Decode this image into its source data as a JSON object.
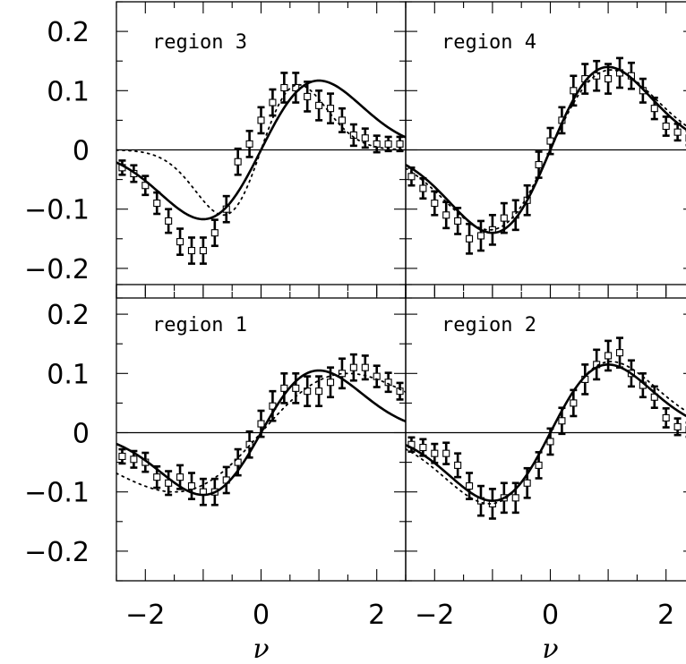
{
  "chart_data": [
    {
      "type": "scatter",
      "title": "region 3",
      "xlim": [
        -2.5,
        2.5
      ],
      "ylim": [
        -0.25,
        0.25
      ],
      "grid": false,
      "series": [
        {
          "kind": "points-with-errors",
          "x": [
            -2.4,
            -2.2,
            -2.0,
            -1.8,
            -1.6,
            -1.4,
            -1.2,
            -1.0,
            -0.8,
            -0.6,
            -0.4,
            -0.2,
            0.0,
            0.2,
            0.4,
            0.6,
            0.8,
            1.0,
            1.2,
            1.4,
            1.6,
            1.8,
            2.0,
            2.2,
            2.4
          ],
          "y": [
            -0.03,
            -0.04,
            -0.06,
            -0.09,
            -0.12,
            -0.155,
            -0.17,
            -0.17,
            -0.14,
            -0.1,
            -0.02,
            0.01,
            0.05,
            0.08,
            0.105,
            0.105,
            0.09,
            0.075,
            0.07,
            0.05,
            0.025,
            0.02,
            0.01,
            0.01,
            0.01
          ],
          "err": [
            0.012,
            0.014,
            0.016,
            0.018,
            0.02,
            0.022,
            0.022,
            0.022,
            0.022,
            0.022,
            0.022,
            0.022,
            0.022,
            0.022,
            0.025,
            0.025,
            0.025,
            0.025,
            0.025,
            0.02,
            0.018,
            0.016,
            0.014,
            0.012,
            0.012
          ]
        },
        {
          "kind": "solid-model",
          "amplitude": 0.117,
          "peak": 1.0
        },
        {
          "kind": "dotted-model",
          "amplitude": 0.11,
          "peak": 0.65
        }
      ]
    },
    {
      "type": "scatter",
      "title": "region 4",
      "xlim": [
        -2.5,
        2.5
      ],
      "ylim": [
        -0.25,
        0.25
      ],
      "grid": false,
      "series": [
        {
          "kind": "points-with-errors",
          "x": [
            -2.4,
            -2.2,
            -2.0,
            -1.8,
            -1.6,
            -1.4,
            -1.2,
            -1.0,
            -0.8,
            -0.6,
            -0.4,
            -0.2,
            0.0,
            0.2,
            0.4,
            0.6,
            0.8,
            1.0,
            1.2,
            1.4,
            1.6,
            1.8,
            2.0,
            2.2,
            2.4
          ],
          "y": [
            -0.045,
            -0.065,
            -0.09,
            -0.11,
            -0.12,
            -0.15,
            -0.145,
            -0.135,
            -0.115,
            -0.11,
            -0.085,
            -0.025,
            0.015,
            0.05,
            0.1,
            0.12,
            0.125,
            0.12,
            0.13,
            0.125,
            0.1,
            0.07,
            0.04,
            0.03,
            0.02
          ],
          "err": [
            0.015,
            0.017,
            0.02,
            0.022,
            0.022,
            0.025,
            0.025,
            0.025,
            0.025,
            0.025,
            0.025,
            0.022,
            0.022,
            0.022,
            0.025,
            0.025,
            0.025,
            0.025,
            0.025,
            0.022,
            0.02,
            0.018,
            0.016,
            0.014,
            0.012
          ]
        },
        {
          "kind": "solid-model",
          "amplitude": 0.14,
          "peak": 1.0
        },
        {
          "kind": "dotted-model",
          "amplitude": 0.135,
          "peak": 1.05
        }
      ]
    },
    {
      "type": "scatter",
      "title": "region 1",
      "xlim": [
        -2.5,
        2.5
      ],
      "ylim": [
        -0.25,
        0.25
      ],
      "grid": false,
      "series": [
        {
          "kind": "points-with-errors",
          "x": [
            -2.4,
            -2.2,
            -2.0,
            -1.8,
            -1.6,
            -1.4,
            -1.2,
            -1.0,
            -0.8,
            -0.6,
            -0.4,
            -0.2,
            0.0,
            0.2,
            0.4,
            0.6,
            0.8,
            1.0,
            1.2,
            1.4,
            1.6,
            1.8,
            2.0,
            2.2,
            2.4
          ],
          "y": [
            -0.04,
            -0.045,
            -0.05,
            -0.075,
            -0.085,
            -0.075,
            -0.09,
            -0.1,
            -0.1,
            -0.08,
            -0.05,
            -0.02,
            0.015,
            0.045,
            0.075,
            0.075,
            0.07,
            0.07,
            0.085,
            0.1,
            0.11,
            0.11,
            0.095,
            0.085,
            0.07
          ],
          "err": [
            0.012,
            0.014,
            0.016,
            0.018,
            0.02,
            0.02,
            0.022,
            0.022,
            0.022,
            0.022,
            0.022,
            0.022,
            0.022,
            0.025,
            0.025,
            0.025,
            0.025,
            0.025,
            0.025,
            0.025,
            0.022,
            0.02,
            0.018,
            0.016,
            0.014
          ]
        },
        {
          "kind": "solid-model",
          "amplitude": 0.105,
          "peak": 1.0
        },
        {
          "kind": "dotted-model",
          "amplitude": 0.1,
          "peak": 1.5
        }
      ]
    },
    {
      "type": "scatter",
      "title": "region 2",
      "xlim": [
        -2.5,
        2.5
      ],
      "ylim": [
        -0.25,
        0.25
      ],
      "grid": false,
      "series": [
        {
          "kind": "points-with-errors",
          "x": [
            -2.4,
            -2.2,
            -2.0,
            -1.8,
            -1.6,
            -1.4,
            -1.2,
            -1.0,
            -0.8,
            -0.6,
            -0.4,
            -0.2,
            0.0,
            0.2,
            0.4,
            0.6,
            0.8,
            1.0,
            1.2,
            1.4,
            1.6,
            1.8,
            2.0,
            2.2,
            2.4
          ],
          "y": [
            -0.02,
            -0.025,
            -0.035,
            -0.035,
            -0.055,
            -0.09,
            -0.115,
            -0.12,
            -0.11,
            -0.11,
            -0.085,
            -0.055,
            -0.015,
            0.02,
            0.05,
            0.09,
            0.115,
            0.13,
            0.135,
            0.1,
            0.08,
            0.06,
            0.025,
            0.01,
            0.005
          ],
          "err": [
            0.012,
            0.014,
            0.016,
            0.018,
            0.02,
            0.022,
            0.025,
            0.025,
            0.025,
            0.025,
            0.025,
            0.022,
            0.022,
            0.022,
            0.022,
            0.025,
            0.025,
            0.025,
            0.025,
            0.022,
            0.02,
            0.018,
            0.016,
            0.014,
            0.012
          ]
        },
        {
          "kind": "solid-model",
          "amplitude": 0.115,
          "peak": 1.0
        },
        {
          "kind": "dotted-model",
          "amplitude": 0.12,
          "peak": 1.05
        }
      ]
    }
  ],
  "axes": {
    "y_tick_labels": [
      "0.2",
      "0.1",
      "0",
      "−0.1",
      "−0.2"
    ],
    "y_tick_values": [
      0.2,
      0.1,
      0,
      -0.1,
      -0.2
    ],
    "x_tick_labels": [
      "−2",
      "0",
      "2"
    ],
    "x_tick_values": [
      -2,
      0,
      2
    ],
    "xlabel": "ν"
  }
}
